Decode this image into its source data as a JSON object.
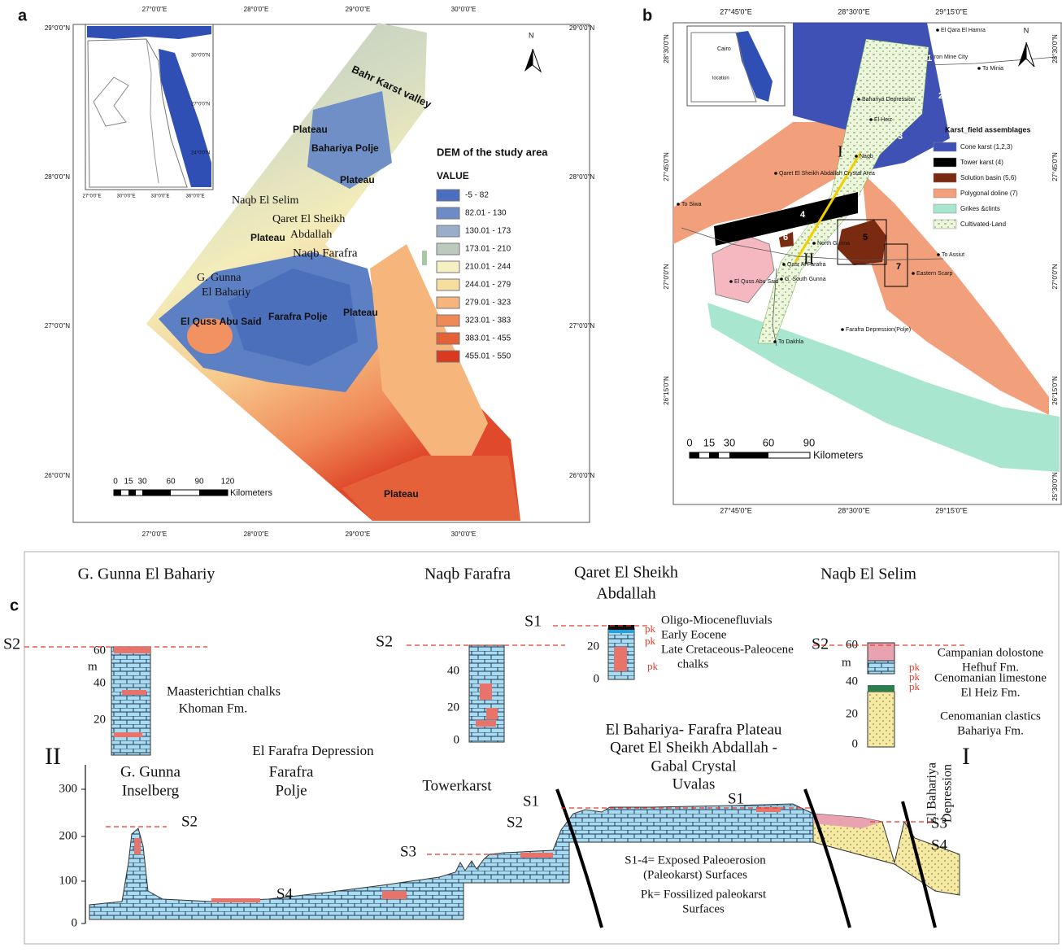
{
  "panel_a": {
    "label": "a",
    "lon_labels": [
      "27°0'0\"E",
      "28°0'0\"E",
      "29°0'0\"E",
      "30°0'0\"E"
    ],
    "lat_labels": [
      "29°0'0\"N",
      "28°0'0\"N",
      "27°0'0\"N",
      "26°0'0\"N"
    ],
    "inset_lon_labels": [
      "27°0'0\"E",
      "30°0'0\"E",
      "33°0'0\"E",
      "36°0'0\"E"
    ],
    "inset_lat_labels": [
      "30°0'0\"N",
      "27°0'0\"N",
      "24°0'0\"N"
    ],
    "north": "N",
    "places": [
      "Bahr Karst valley",
      "Plateau",
      "Bahariya Polje",
      "Plateau",
      "Naqb El Selim",
      "Qaret El Sheikh",
      "Abdallah",
      "Plateau",
      "Naqb Farafra",
      "G. Gunna",
      "El Bahariy",
      "El Quss Abu Said",
      "Farafra Polje",
      "Plateau",
      "Plateau"
    ],
    "legend": {
      "title": "DEM of the study area",
      "subtitle": "VALUE",
      "classes": [
        "-5 - 82",
        "82.01 - 130",
        "130.01 - 173",
        "173.01 - 210",
        "210.01 - 244",
        "244.01 - 279",
        "279.01 - 323",
        "323.01 - 383",
        "383.01 - 455",
        "455.01 - 550"
      ]
    },
    "scale": {
      "ticks": [
        "0",
        "15",
        "30",
        "60",
        "90",
        "120"
      ],
      "unit": "Kilometers"
    }
  },
  "panel_b": {
    "label": "b",
    "lon_labels": [
      "27°45'0\"E",
      "28°30'0\"E",
      "29°15'0\"E"
    ],
    "lat_labels": [
      "28°30'0\"N",
      "27°45'0\"N",
      "27°0'0\"N",
      "26°15'0\"N",
      "25°30'0\"N"
    ],
    "north": "N",
    "inset_places": [
      "Cairo",
      "location"
    ],
    "places": [
      "El Qara El Hamra",
      "Iron Mine City",
      "To Minia",
      "Bahariya Depression",
      "El Heiz",
      "Naqb",
      "Qaret El Sheikh Abdallah Crystal Area",
      "To Siwa",
      "North Gunna",
      "To Assiut",
      "Eastern Scarp",
      "Qasr Al Farafra",
      "El Quss Abu Said",
      "G. South Gunna",
      "To Dakhla",
      "Farafra Depression(Polje)"
    ],
    "field_numbers": [
      "1",
      "2",
      "3",
      "4",
      "5",
      "6",
      "7"
    ],
    "section_ends": [
      "I",
      "II"
    ],
    "legend": {
      "title": "Karst_field assemblages",
      "items": [
        "Cone karst (1,2,3)",
        "Tower karst (4)",
        "Solution basin (5,6)",
        "Polygonal doline (7)",
        "Grikes &clints",
        "Cultivated-Land"
      ]
    },
    "scale": {
      "ticks": [
        "0",
        "15",
        "30",
        "60",
        "90"
      ],
      "unit": "Kilometers"
    }
  },
  "panel_c": {
    "label": "c",
    "columns": [
      {
        "title": [
          "G. Gunna El Bahariy"
        ],
        "surface": "S2",
        "ticks": [
          "60",
          "40",
          "20"
        ],
        "unit": "m",
        "formations": [
          "Maasterichtian chalks",
          "Khoman Fm."
        ]
      },
      {
        "title": [
          "Naqb Farafra"
        ],
        "surface": "S2",
        "ticks": [
          "40",
          "20",
          "0"
        ]
      },
      {
        "title": [
          "Qaret El Sheikh",
          "Abdallah"
        ],
        "surface": "S1",
        "ticks": [
          "20",
          "0"
        ],
        "formations": [
          "Oligo-Miocenefluvials",
          "Early Eocene",
          "Late Cretaceous-Paleocene",
          "chalks"
        ],
        "pk": [
          "pk",
          "pk",
          "pk"
        ]
      },
      {
        "title": [
          "Naqb El Selim"
        ],
        "surface": "S2",
        "ticks": [
          "60",
          "40",
          "20",
          "0"
        ],
        "unit": "m",
        "formations": [
          "Campanian dolostone",
          "Hefhuf Fm.",
          "Cenomanian limestone",
          "El Heiz Fm.",
          "Cenomanian clastics",
          "Bahariya Fm."
        ],
        "pk": [
          "pk",
          "pk",
          "pk"
        ]
      }
    ],
    "section": {
      "ends": [
        "II",
        "I"
      ],
      "yticks": [
        "300",
        "200",
        "100",
        "0"
      ],
      "places": [
        [
          "G. Gunna",
          "Inselberg"
        ],
        [
          "El Farafra Depression"
        ],
        [
          "Farafra",
          "Polje"
        ],
        [
          "Towerkarst"
        ],
        [
          "El Bahariya- Farafra Plateau",
          "Qaret El Sheikh Abdallah -",
          "Gabal Crystal",
          "Uvalas"
        ],
        [
          "El Bahariya",
          "Depression"
        ]
      ],
      "surfaces": [
        "S2",
        "S4",
        "S3",
        "S2",
        "S1",
        "S1",
        "S3",
        "S4"
      ],
      "notes": [
        "S1-4= Exposed Paleoerosion",
        "(Paleokarst) Surfaces",
        "Pk= Fossilized paleokarst",
        "Surfaces"
      ]
    }
  }
}
